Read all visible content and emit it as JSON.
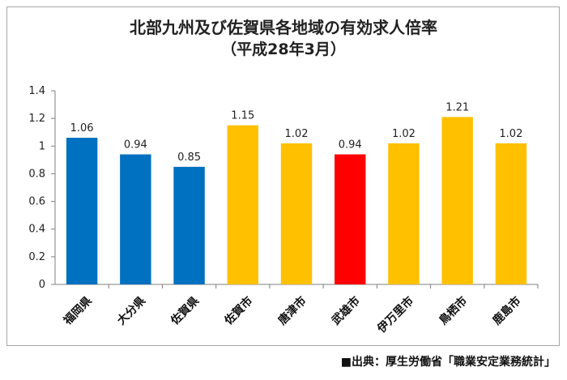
{
  "chart_data": {
    "type": "bar",
    "title": "北部九州及び佐賀県各地域の有効求人倍率",
    "subtitle": "（平成28年3月）",
    "categories": [
      "福岡県",
      "大分県",
      "佐賀県",
      "佐賀市",
      "唐津市",
      "武雄市",
      "伊万里市",
      "鳥栖市",
      "鹿島市"
    ],
    "values": [
      1.06,
      0.94,
      0.85,
      1.15,
      1.02,
      0.94,
      1.02,
      1.21,
      1.02
    ],
    "data_labels": [
      "1.06",
      "0.94",
      "0.85",
      "1.15",
      "1.02",
      "0.94",
      "1.02",
      "1.21",
      "1.02"
    ],
    "bar_colors": [
      "#0070c0",
      "#0070c0",
      "#0070c0",
      "#ffc000",
      "#ffc000",
      "#ff0000",
      "#ffc000",
      "#ffc000",
      "#ffc000"
    ],
    "ylim": [
      0,
      1.4
    ],
    "y_ticks": [
      "0",
      "0.2",
      "0.4",
      "0.6",
      "0.8",
      "1",
      "1.2",
      "1.4"
    ],
    "grid": false,
    "legend": "none"
  },
  "source_note": "■出典：厚生労働省「職業安定業務統計」"
}
